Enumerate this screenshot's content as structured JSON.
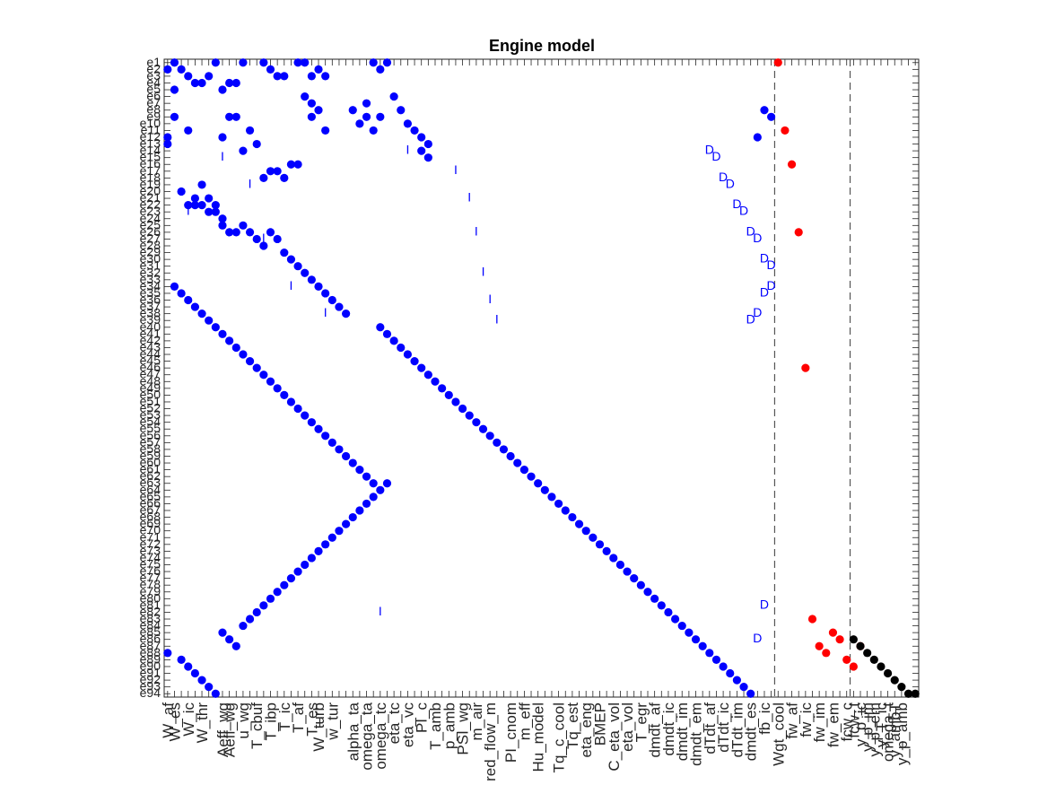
{
  "chart_data": {
    "type": "scatter",
    "title": "Engine model",
    "xlabel": "",
    "ylabel": "",
    "grid": false,
    "legend": "none",
    "xlim": [
      0.5,
      110.5
    ],
    "ylim": [
      0.5,
      94.5
    ],
    "y_axis_reversed": true,
    "row_labels": [
      "e1",
      "e2",
      "e3",
      "e4",
      "e5",
      "e6",
      "e7",
      "e8",
      "e9",
      "e10",
      "e11",
      "e12",
      "e13",
      "e14",
      "e15",
      "e16",
      "e17",
      "e18",
      "e19",
      "e20",
      "e21",
      "e22",
      "e23",
      "e24",
      "e25",
      "e26",
      "e27",
      "e28",
      "e29",
      "e30",
      "e31",
      "e32",
      "e33",
      "e34",
      "e35",
      "e36",
      "e37",
      "e38",
      "e39",
      "e40",
      "e41",
      "e42",
      "e43",
      "e44",
      "e45",
      "e46",
      "e47",
      "e48",
      "e49",
      "e50",
      "e51",
      "e52",
      "e53",
      "e54",
      "e55",
      "e56",
      "e57",
      "e58",
      "e59",
      "e60",
      "e61",
      "e62",
      "e63",
      "e64",
      "e65",
      "e66",
      "e67",
      "e68",
      "e69",
      "e70",
      "e71",
      "e72",
      "e73",
      "e74",
      "e75",
      "e76",
      "e77",
      "e78",
      "e79",
      "e80",
      "e81",
      "e82",
      "e83",
      "e84",
      "e85",
      "e86",
      "e87",
      "e88",
      "e89",
      "e90",
      "e91",
      "e92",
      "e93",
      "e94"
    ],
    "column_labels": [
      "W_af",
      "W_es",
      "W_ic",
      "W_thr",
      "Aeff_wg",
      "Aeff_wg",
      "u_wg",
      "T_cbuf",
      "T_ibp",
      "T_ic",
      "T_af",
      "T_es",
      "W_turb",
      "w_tur",
      "alpha_ta",
      "omega_ta",
      "omega_tc",
      "eta_tc",
      "eta_vc",
      "PI_c",
      "T_amb",
      "p_amb",
      "PSI_wg",
      "m_air",
      "red_flow_m",
      "PI_cnom",
      "m_eff",
      "Hu_model",
      "Tq_c_cool",
      "Tq_est",
      "eta_eng",
      "BMEP",
      "C_eta_vol",
      "eta_vol",
      "T_egr",
      "dmdt_af",
      "dmdt_ic",
      "dmdt_im",
      "dmdt_em",
      "dTdt_af",
      "dTdt_ic",
      "dTdt_im",
      "dmdt_es",
      "fb_ic",
      "Wgt_cool",
      "fw_af",
      "fw_ic",
      "fw_im",
      "fw_em",
      "fcw_c",
      "fcw_t",
      "y_p_ic",
      "y_p_im",
      "y_p_em",
      "y_T_ic",
      "omega_t",
      "y_ambT",
      "y_p_amb"
    ],
    "column_label_positions": [
      1,
      2,
      4,
      6,
      9,
      10,
      12,
      14,
      16,
      18,
      20,
      22,
      23,
      25,
      28,
      30,
      32,
      34,
      36,
      38,
      40,
      42,
      44,
      46,
      48,
      51,
      53,
      55,
      58,
      60,
      62,
      64,
      66,
      68,
      70,
      72,
      74,
      76,
      78,
      80,
      82,
      84,
      86,
      88,
      90,
      92,
      94,
      96,
      98,
      100,
      101,
      102,
      103,
      104,
      105,
      106,
      107,
      108
    ],
    "separators_x": [
      89.5,
      100.5
    ],
    "colors": {
      "interior": "#0000ff",
      "boundary": "#ff0000",
      "diagonal": "#000000"
    },
    "series": [
      {
        "marker": "filled-circle",
        "color": "#0000ff",
        "points": [
          [
            1,
            2
          ],
          [
            2,
            1
          ],
          [
            3,
            2
          ],
          [
            4,
            3
          ],
          [
            5,
            4
          ],
          [
            6,
            4
          ],
          [
            7,
            3
          ],
          [
            8,
            1
          ],
          [
            9,
            5
          ],
          [
            10,
            4
          ],
          [
            11,
            4
          ],
          [
            12,
            1
          ],
          [
            15,
            1
          ],
          [
            16,
            2
          ],
          [
            17,
            3
          ],
          [
            18,
            3
          ],
          [
            20,
            1
          ],
          [
            21,
            1
          ],
          [
            22,
            3
          ],
          [
            23,
            2
          ],
          [
            24,
            3
          ],
          [
            31,
            1
          ],
          [
            32,
            2
          ],
          [
            33,
            1
          ],
          [
            34,
            6
          ],
          [
            35,
            8
          ],
          [
            36,
            10
          ],
          [
            37,
            11
          ],
          [
            38,
            12
          ],
          [
            39,
            13
          ],
          [
            1,
            13
          ],
          [
            1,
            12
          ],
          [
            2,
            9
          ],
          [
            2,
            5
          ],
          [
            4,
            11
          ],
          [
            9,
            12
          ],
          [
            10,
            9
          ],
          [
            11,
            9
          ],
          [
            12,
            14
          ],
          [
            13,
            11
          ],
          [
            14,
            13
          ],
          [
            15,
            18
          ],
          [
            16,
            17
          ],
          [
            17,
            17
          ],
          [
            18,
            18
          ],
          [
            19,
            16
          ],
          [
            20,
            16
          ],
          [
            21,
            6
          ],
          [
            22,
            9
          ],
          [
            22,
            7
          ],
          [
            23,
            8
          ],
          [
            24,
            11
          ],
          [
            28,
            8
          ],
          [
            29,
            10
          ],
          [
            30,
            7
          ],
          [
            30,
            9
          ],
          [
            31,
            11
          ],
          [
            32,
            9
          ],
          [
            38,
            14
          ],
          [
            39,
            15
          ],
          [
            3,
            20
          ],
          [
            4,
            22
          ],
          [
            5,
            21
          ],
          [
            5,
            22
          ],
          [
            6,
            19
          ],
          [
            6,
            22
          ],
          [
            7,
            21
          ],
          [
            7,
            23
          ],
          [
            8,
            22
          ],
          [
            8,
            23
          ],
          [
            9,
            24
          ],
          [
            9,
            25
          ],
          [
            10,
            26
          ],
          [
            11,
            26
          ],
          [
            12,
            25
          ],
          [
            13,
            26
          ],
          [
            14,
            27
          ],
          [
            15,
            28
          ],
          [
            16,
            26
          ],
          [
            17,
            27
          ],
          [
            18,
            29
          ],
          [
            19,
            30
          ],
          [
            20,
            31
          ],
          [
            21,
            32
          ],
          [
            22,
            33
          ],
          [
            23,
            34
          ],
          [
            24,
            35
          ],
          [
            25,
            36
          ],
          [
            26,
            37
          ],
          [
            27,
            38
          ],
          [
            2,
            34
          ],
          [
            3,
            35
          ],
          [
            4,
            36
          ],
          [
            5,
            37
          ],
          [
            6,
            38
          ],
          [
            7,
            39
          ],
          [
            8,
            40
          ],
          [
            9,
            41
          ],
          [
            10,
            42
          ],
          [
            11,
            43
          ],
          [
            12,
            44
          ],
          [
            13,
            45
          ],
          [
            14,
            46
          ],
          [
            15,
            47
          ],
          [
            16,
            48
          ],
          [
            17,
            49
          ],
          [
            18,
            50
          ],
          [
            19,
            51
          ],
          [
            20,
            52
          ],
          [
            21,
            53
          ],
          [
            22,
            54
          ],
          [
            23,
            55
          ],
          [
            24,
            56
          ],
          [
            25,
            57
          ],
          [
            26,
            58
          ],
          [
            27,
            59
          ],
          [
            28,
            60
          ],
          [
            29,
            61
          ],
          [
            30,
            62
          ],
          [
            31,
            63
          ],
          [
            32,
            40
          ],
          [
            33,
            41
          ],
          [
            34,
            42
          ],
          [
            35,
            43
          ],
          [
            36,
            44
          ],
          [
            37,
            45
          ],
          [
            38,
            46
          ],
          [
            39,
            47
          ],
          [
            40,
            48
          ],
          [
            41,
            49
          ],
          [
            42,
            50
          ],
          [
            43,
            51
          ],
          [
            44,
            52
          ],
          [
            45,
            53
          ],
          [
            46,
            54
          ],
          [
            47,
            55
          ],
          [
            48,
            56
          ],
          [
            49,
            57
          ],
          [
            50,
            58
          ],
          [
            51,
            59
          ],
          [
            52,
            60
          ],
          [
            53,
            61
          ],
          [
            54,
            62
          ],
          [
            55,
            63
          ],
          [
            56,
            64
          ],
          [
            57,
            65
          ],
          [
            58,
            66
          ],
          [
            59,
            67
          ],
          [
            60,
            68
          ],
          [
            61,
            69
          ],
          [
            62,
            70
          ],
          [
            63,
            71
          ],
          [
            64,
            72
          ],
          [
            65,
            73
          ],
          [
            66,
            74
          ],
          [
            67,
            75
          ],
          [
            68,
            76
          ],
          [
            69,
            77
          ],
          [
            70,
            78
          ],
          [
            71,
            79
          ],
          [
            72,
            80
          ],
          [
            73,
            81
          ],
          [
            74,
            82
          ],
          [
            75,
            83
          ],
          [
            76,
            84
          ],
          [
            77,
            85
          ],
          [
            78,
            86
          ],
          [
            79,
            87
          ],
          [
            80,
            88
          ],
          [
            81,
            89
          ],
          [
            82,
            90
          ],
          [
            83,
            91
          ],
          [
            84,
            92
          ],
          [
            85,
            93
          ],
          [
            86,
            94
          ],
          [
            87,
            12
          ],
          [
            88,
            8
          ],
          [
            89,
            9
          ],
          [
            3,
            89
          ],
          [
            4,
            90
          ],
          [
            1,
            88
          ],
          [
            5,
            91
          ],
          [
            6,
            92
          ],
          [
            7,
            93
          ],
          [
            8,
            94
          ],
          [
            9,
            85
          ],
          [
            10,
            86
          ],
          [
            11,
            87
          ],
          [
            12,
            84
          ],
          [
            13,
            83
          ],
          [
            14,
            82
          ],
          [
            15,
            81
          ],
          [
            16,
            80
          ],
          [
            17,
            79
          ],
          [
            18,
            78
          ],
          [
            19,
            77
          ],
          [
            20,
            76
          ],
          [
            21,
            75
          ],
          [
            22,
            74
          ],
          [
            23,
            73
          ],
          [
            24,
            72
          ],
          [
            25,
            71
          ],
          [
            26,
            70
          ],
          [
            27,
            69
          ],
          [
            28,
            68
          ],
          [
            29,
            67
          ],
          [
            30,
            66
          ],
          [
            31,
            65
          ],
          [
            32,
            64
          ],
          [
            33,
            63
          ]
        ]
      },
      {
        "marker": "filled-circle",
        "color": "#ff0000",
        "points": [
          [
            90,
            1
          ],
          [
            91,
            11
          ],
          [
            92,
            16
          ],
          [
            93,
            26
          ],
          [
            94,
            46
          ],
          [
            95,
            83
          ],
          [
            96,
            87
          ],
          [
            97,
            88
          ],
          [
            98,
            85
          ],
          [
            99,
            86
          ],
          [
            100,
            89
          ],
          [
            101,
            90
          ],
          [
            102,
            87
          ]
        ]
      },
      {
        "marker": "filled-circle",
        "color": "#000000",
        "points": [
          [
            101,
            86
          ],
          [
            102,
            87
          ],
          [
            103,
            88
          ],
          [
            104,
            89
          ],
          [
            105,
            90
          ],
          [
            106,
            91
          ],
          [
            107,
            92
          ],
          [
            108,
            93
          ],
          [
            109,
            94
          ],
          [
            110,
            94
          ]
        ]
      },
      {
        "marker": "text-D",
        "color": "#0000ff",
        "points": [
          [
            80,
            13
          ],
          [
            81,
            14
          ],
          [
            82,
            17
          ],
          [
            83,
            18
          ],
          [
            84,
            21
          ],
          [
            85,
            22
          ],
          [
            86,
            25
          ],
          [
            87,
            26
          ],
          [
            88,
            29
          ],
          [
            89,
            30
          ],
          [
            89,
            33
          ],
          [
            88,
            34
          ],
          [
            87,
            37
          ],
          [
            86,
            38
          ],
          [
            88,
            80
          ],
          [
            87,
            85
          ]
        ]
      },
      {
        "marker": "text-I",
        "color": "#0000ff",
        "points": [
          [
            9,
            14
          ],
          [
            13,
            18
          ],
          [
            4,
            22
          ],
          [
            15,
            26
          ],
          [
            19,
            33
          ],
          [
            24,
            37
          ],
          [
            36,
            13
          ],
          [
            43,
            16
          ],
          [
            45,
            20
          ],
          [
            46,
            25
          ],
          [
            47,
            31
          ],
          [
            48,
            35
          ],
          [
            49,
            38
          ],
          [
            32,
            81
          ]
        ]
      }
    ]
  }
}
